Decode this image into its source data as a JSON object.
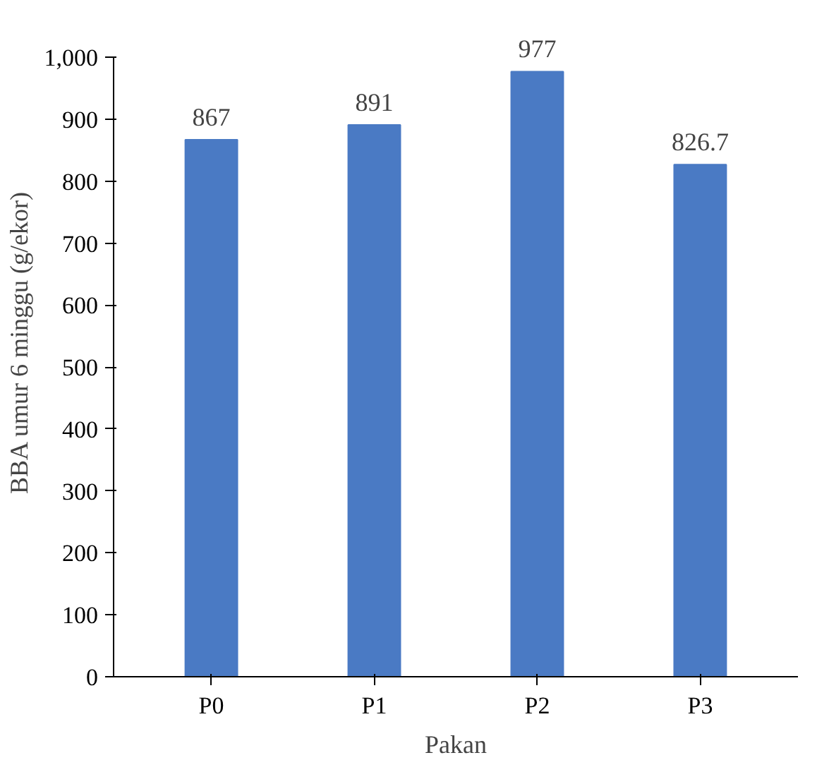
{
  "chart_data": {
    "type": "bar",
    "xlabel": "Pakan",
    "ylabel": "BBA umur 6 minggu (g/ekor)",
    "categories": [
      "P0",
      "P1",
      "P2",
      "P3"
    ],
    "values": [
      867,
      891,
      977,
      826.7
    ],
    "color": "#4a7ac4",
    "data_labels": true,
    "ylim": [
      0,
      1000
    ],
    "yticks": [
      0,
      100,
      200,
      300,
      400,
      500,
      600,
      700,
      800,
      900,
      {
        "value": 1000,
        "label": "1,000"
      }
    ],
    "grid": false
  }
}
